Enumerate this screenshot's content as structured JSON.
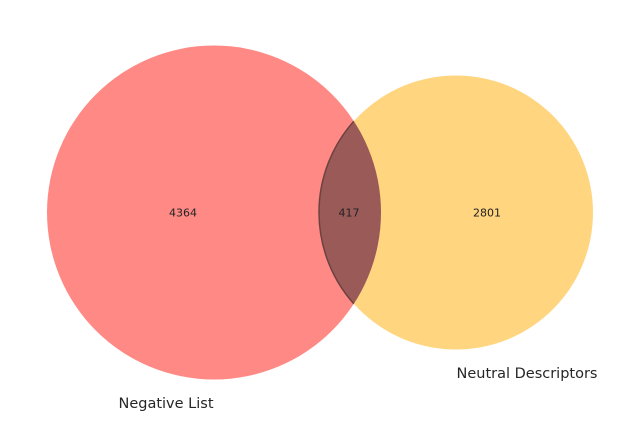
{
  "venn": {
    "type": "venn2",
    "sets": [
      {
        "name": "Negative List",
        "only_count": "4364",
        "color": "#ff8a85"
      },
      {
        "name": "Neutral Descriptors",
        "only_count": "2801",
        "color": "#ffd580"
      }
    ],
    "intersection": {
      "count": "417",
      "color": "#9a5a58"
    },
    "overlap_stroke": "#6e4141"
  }
}
